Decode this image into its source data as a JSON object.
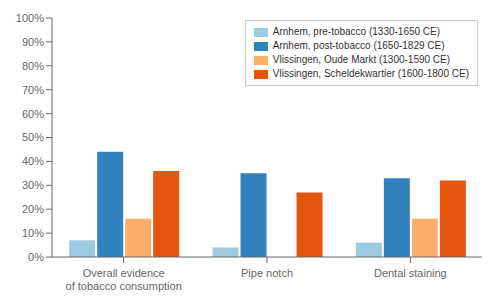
{
  "chart_data": {
    "type": "bar",
    "categories": [
      "Overall evidence\nof tobacco consumption",
      "Pipe notch",
      "Dental staining"
    ],
    "series": [
      {
        "name": "Arnhem, pre-tobacco (1330-1650 CE)",
        "color": "#9ecae1",
        "values": [
          0.07,
          0.04,
          0.06
        ]
      },
      {
        "name": "Arnhem, post-tobacco (1650-1829 CE)",
        "color": "#3182bd",
        "values": [
          0.44,
          0.35,
          0.33
        ]
      },
      {
        "name": "Vlissingen, Oude Markt (1300-1590 CE)",
        "color": "#fdae6b",
        "values": [
          0.16,
          0.0,
          0.16
        ]
      },
      {
        "name": "Vlissingen, Scheldekwartier (1600-1800 CE)",
        "color": "#e6550d",
        "values": [
          0.36,
          0.27,
          0.32
        ]
      }
    ],
    "ylim": [
      0,
      1.0
    ],
    "yticks": [
      {
        "value": 0,
        "label": "0%"
      },
      {
        "value": 0.1,
        "label": "10%"
      },
      {
        "value": 0.2,
        "label": "20%"
      },
      {
        "value": 0.3,
        "label": "30%"
      },
      {
        "value": 0.4,
        "label": "40%"
      },
      {
        "value": 0.5,
        "label": "50%"
      },
      {
        "value": 0.6,
        "label": "60%"
      },
      {
        "value": 0.7,
        "label": "70%"
      },
      {
        "value": 0.8,
        "label": "80%"
      },
      {
        "value": 0.9,
        "label": "90%"
      },
      {
        "value": 1.0,
        "label": "100%"
      }
    ],
    "legend": "upper right",
    "grid": false
  }
}
